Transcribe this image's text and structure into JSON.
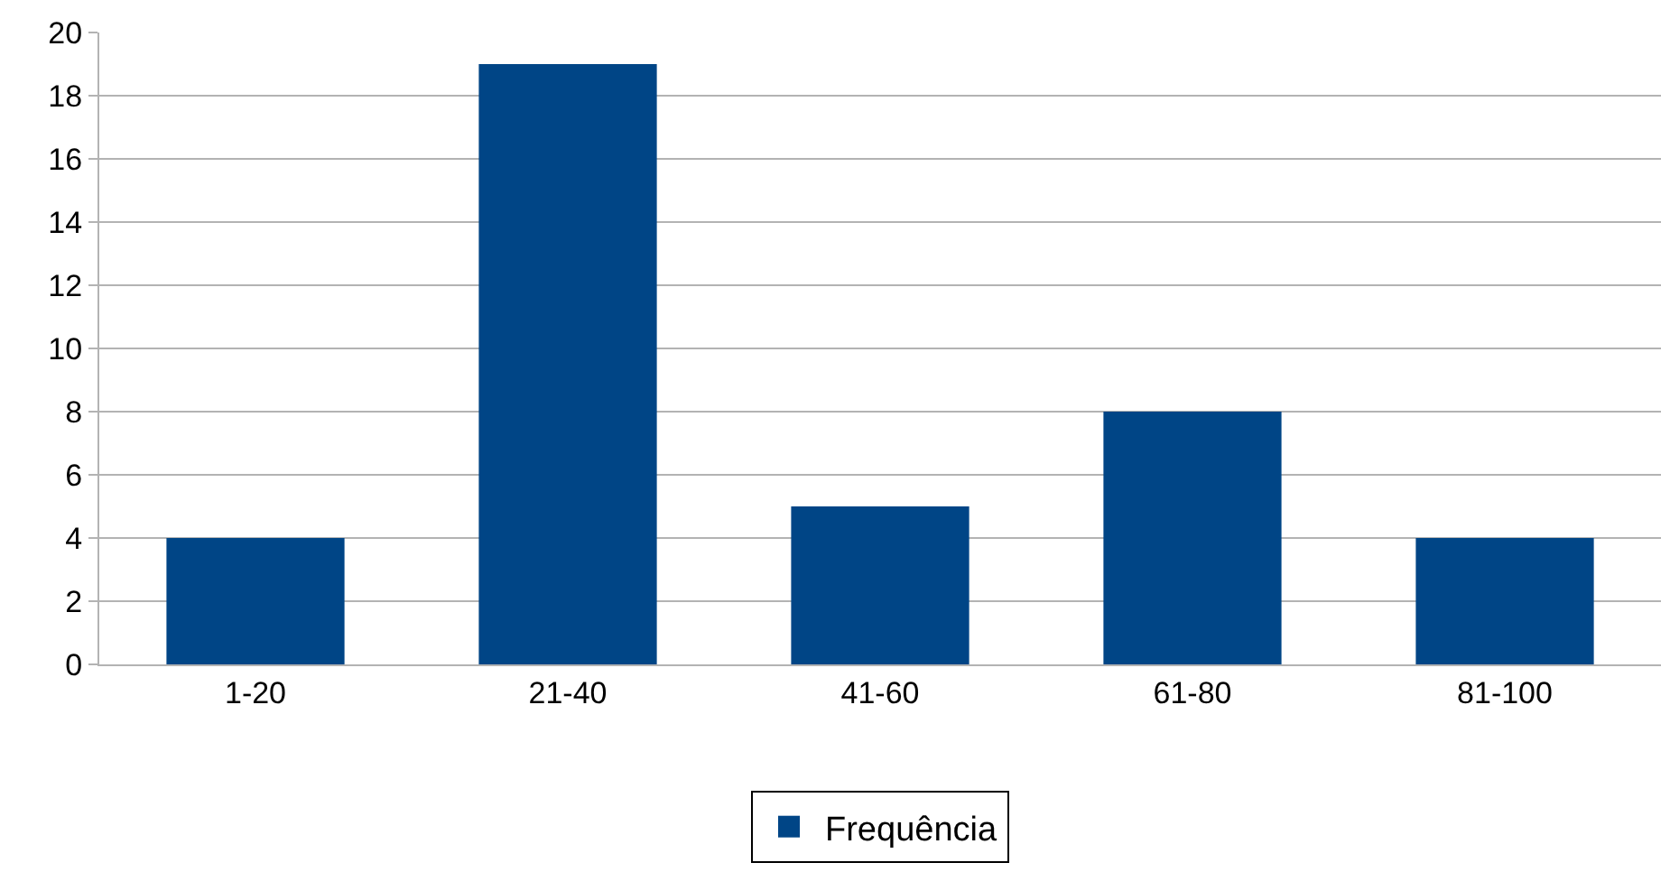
{
  "chart_data": {
    "type": "bar",
    "categories": [
      "1-20",
      "21-40",
      "41-60",
      "61-80",
      "81-100"
    ],
    "series": [
      {
        "name": "Frequência",
        "color": "#004586",
        "values": [
          4,
          19,
          5,
          8,
          4
        ]
      }
    ],
    "ylim": [
      0,
      20
    ],
    "yticks": [
      0,
      2,
      4,
      6,
      8,
      10,
      12,
      14,
      16,
      18,
      20
    ],
    "grid": "y",
    "legend": "bottom"
  }
}
